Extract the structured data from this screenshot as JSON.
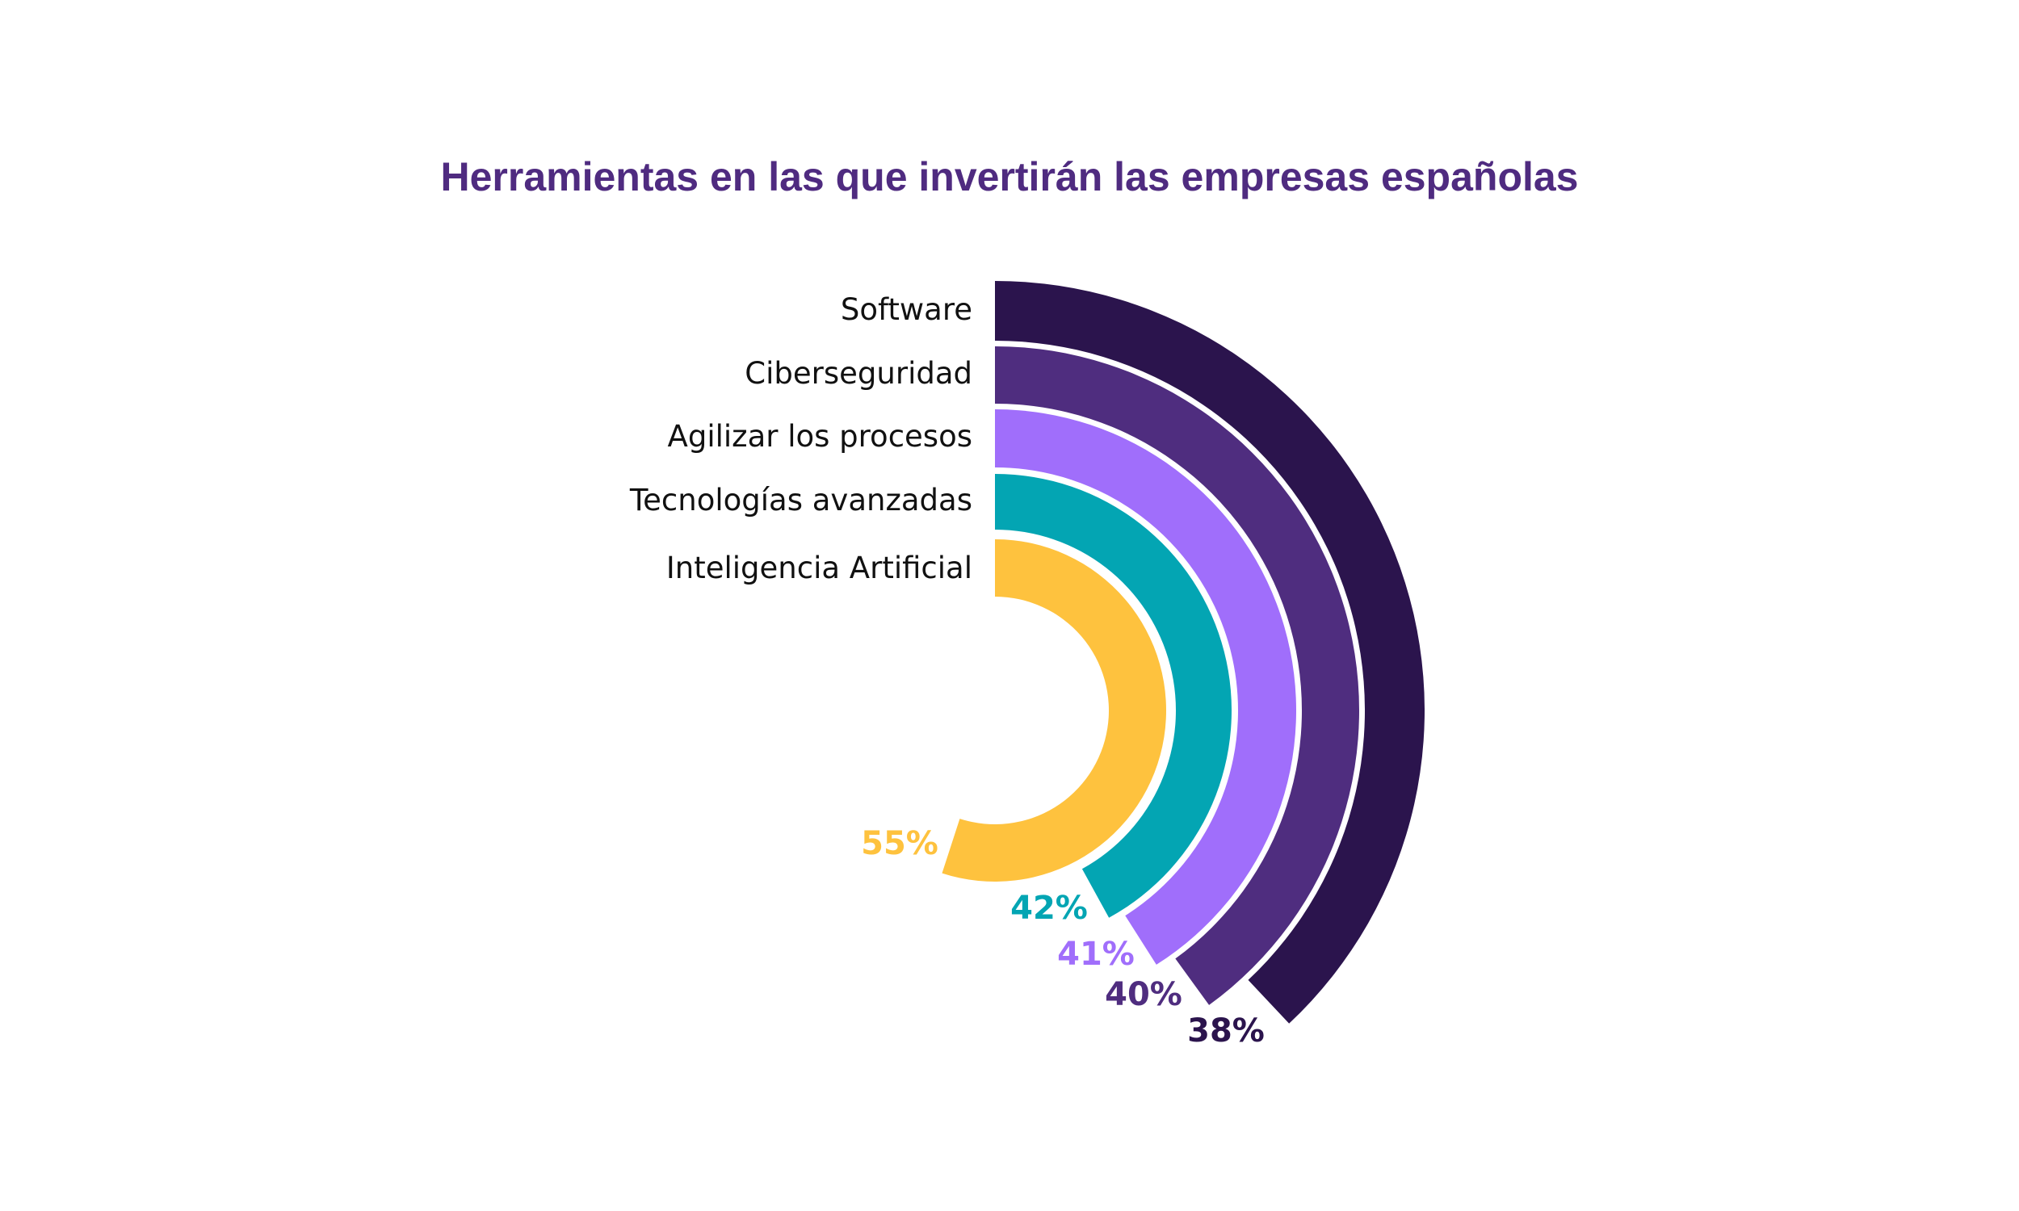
{
  "chart_data": {
    "type": "radial-bar",
    "title": "Herramientas en las que invertirán las empresas españolas",
    "categories": [
      "Software",
      "Ciberseguridad",
      "Agilizar los procesos",
      "Tecnologías avanzadas",
      "Inteligencia Artificial"
    ],
    "values": [
      38,
      40,
      41,
      42,
      55
    ],
    "value_labels": [
      "38%",
      "40%",
      "41%",
      "42%",
      "55%"
    ],
    "colors": [
      "#2b144d",
      "#4f2d7f",
      "#a06efb",
      "#03a5b3",
      "#fec23e"
    ],
    "max": 100,
    "title_color": "#4f2b80"
  }
}
